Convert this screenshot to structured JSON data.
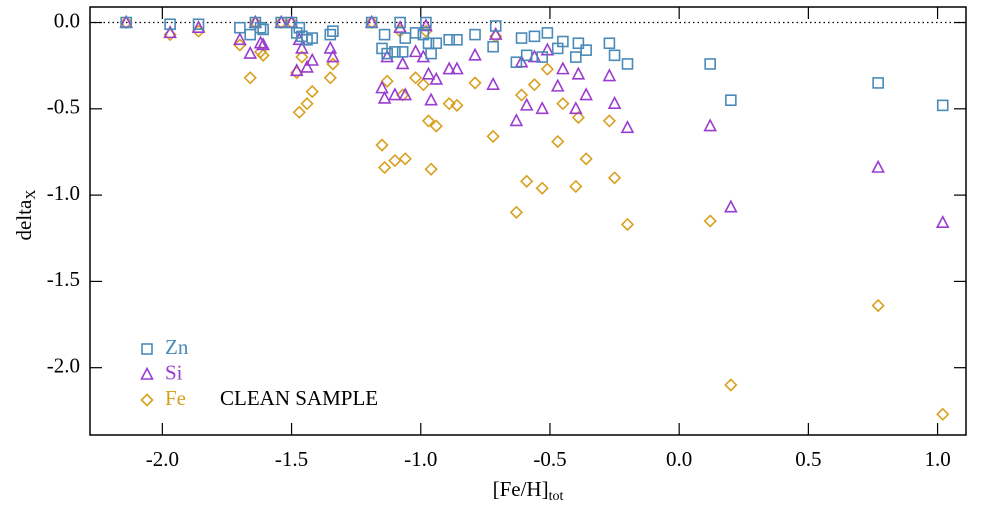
{
  "chart_data": {
    "type": "scatter",
    "xlabel": {
      "text": "[Fe/H]",
      "sub": "tot"
    },
    "ylabel": {
      "text": "delta",
      "sub": "X"
    },
    "annotation": "CLEAN SAMPLE",
    "xlim": [
      -2.28,
      1.11
    ],
    "ylim": [
      -2.39,
      0.09
    ],
    "xticks": [
      -2.0,
      -1.5,
      -1.0,
      -0.5,
      0.0,
      0.5,
      1.0
    ],
    "yticks": [
      0.0,
      -0.5,
      -1.0,
      -1.5,
      -2.0
    ],
    "hline": 0,
    "legend": "lower left",
    "x": [
      -2.14,
      -1.97,
      -1.86,
      -1.7,
      -1.66,
      -1.64,
      -1.62,
      -1.61,
      -1.54,
      -1.5,
      -1.48,
      -1.47,
      -1.46,
      -1.44,
      -1.42,
      -1.35,
      -1.34,
      -1.19,
      -1.15,
      -1.14,
      -1.13,
      -1.1,
      -1.08,
      -1.07,
      -1.06,
      -1.02,
      -0.99,
      -0.98,
      -0.97,
      -0.96,
      -0.94,
      -0.89,
      -0.86,
      -0.79,
      -0.72,
      -0.71,
      -0.63,
      -0.61,
      -0.59,
      -0.56,
      -0.53,
      -0.51,
      -0.47,
      -0.45,
      -0.4,
      -0.39,
      -0.36,
      -0.27,
      -0.25,
      -0.2,
      0.12,
      0.2,
      0.77,
      1.02
    ],
    "series": [
      {
        "name": "Zn",
        "color": "#4a8ab8",
        "marker": "square",
        "values": [
          0,
          -0.01,
          -0.01,
          -0.03,
          -0.07,
          0,
          -0.03,
          -0.04,
          0,
          0,
          -0.06,
          -0.03,
          -0.08,
          -0.1,
          -0.09,
          -0.07,
          -0.05,
          0,
          -0.15,
          -0.07,
          -0.18,
          -0.17,
          0,
          -0.17,
          -0.09,
          -0.06,
          -0.07,
          0,
          -0.12,
          -0.18,
          -0.12,
          -0.1,
          -0.1,
          -0.07,
          -0.14,
          -0.02,
          -0.23,
          -0.09,
          -0.19,
          -0.08,
          -0.2,
          -0.06,
          -0.15,
          -0.11,
          -0.2,
          -0.12,
          -0.16,
          -0.12,
          -0.19,
          -0.24,
          -0.24,
          -0.45,
          -0.35,
          -0.48
        ]
      },
      {
        "name": "Si",
        "color": "#9a3cd0",
        "marker": "triangle",
        "values": [
          0,
          -0.06,
          -0.03,
          -0.1,
          -0.18,
          0,
          -0.12,
          -0.13,
          0,
          0,
          -0.28,
          -0.1,
          -0.15,
          -0.26,
          -0.22,
          -0.15,
          -0.2,
          0,
          -0.38,
          -0.44,
          -0.2,
          -0.42,
          -0.03,
          -0.24,
          -0.42,
          -0.17,
          -0.2,
          -0.02,
          -0.3,
          -0.45,
          -0.33,
          -0.27,
          -0.27,
          -0.19,
          -0.36,
          -0.07,
          -0.57,
          -0.23,
          -0.48,
          -0.2,
          -0.5,
          -0.16,
          -0.37,
          -0.27,
          -0.5,
          -0.3,
          -0.42,
          -0.31,
          -0.47,
          -0.61,
          -0.6,
          -1.07,
          -0.84,
          -1.16
        ]
      },
      {
        "name": "Fe",
        "color": "#d9a020",
        "marker": "diamond",
        "values": [
          0,
          -0.07,
          -0.05,
          -0.13,
          -0.32,
          0,
          -0.17,
          -0.19,
          0,
          0,
          -0.29,
          -0.52,
          -0.2,
          -0.47,
          -0.4,
          -0.32,
          -0.24,
          0,
          -0.71,
          -0.84,
          -0.34,
          -0.8,
          -0.05,
          -0.42,
          -0.79,
          -0.32,
          -0.36,
          -0.05,
          -0.57,
          -0.85,
          -0.6,
          -0.47,
          -0.48,
          -0.35,
          -0.66,
          -0.08,
          -1.1,
          -0.42,
          -0.92,
          -0.36,
          -0.96,
          -0.27,
          -0.69,
          -0.47,
          -0.95,
          -0.55,
          -0.79,
          -0.57,
          -0.9,
          -1.17,
          -1.15,
          -2.1,
          -1.64,
          -2.27
        ]
      }
    ]
  }
}
